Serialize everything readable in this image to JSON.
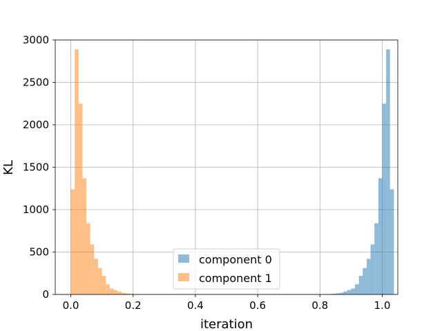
{
  "chart_data": {
    "type": "histogram",
    "title": "",
    "xlabel": "iteration",
    "ylabel": "KL",
    "xlim": [
      -0.05,
      1.05
    ],
    "ylim": [
      0,
      3000
    ],
    "xticks": [
      0.0,
      0.2,
      0.4,
      0.6,
      0.8,
      1.0
    ],
    "xtick_labels": [
      "0.0",
      "0.2",
      "0.4",
      "0.6",
      "0.8",
      "1.0"
    ],
    "yticks": [
      0,
      500,
      1000,
      1500,
      2000,
      2500,
      3000
    ],
    "ytick_labels": [
      "0",
      "500",
      "1000",
      "1500",
      "2000",
      "2500",
      "3000"
    ],
    "grid": true,
    "legend_position": "lower center",
    "bin_width": 0.0125,
    "series": [
      {
        "name": "component 0",
        "color": "#1f77b4",
        "alpha": 0.5,
        "bin_start": 0.7625,
        "counts": [
          1,
          3,
          2,
          1,
          2,
          5,
          8,
          13,
          20,
          35,
          52,
          70,
          120,
          220,
          310,
          420,
          590,
          840,
          1370,
          2250,
          2890,
          1240
        ]
      },
      {
        "name": "component 1",
        "color": "#ff7f0e",
        "alpha": 0.5,
        "bin_start": 0.0,
        "counts": [
          1240,
          2890,
          2250,
          1370,
          840,
          590,
          420,
          310,
          220,
          120,
          70,
          52,
          35,
          20,
          13,
          8,
          5,
          2,
          1,
          2,
          3,
          1
        ]
      }
    ]
  }
}
